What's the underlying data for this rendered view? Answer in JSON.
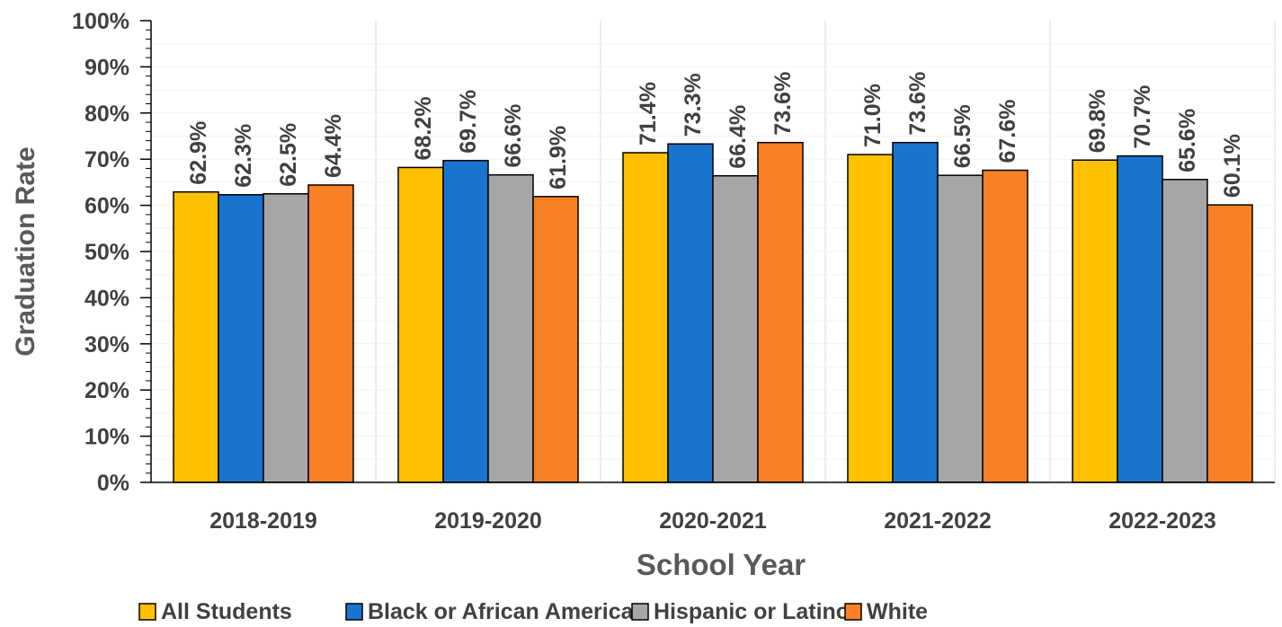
{
  "chart_data": {
    "type": "bar",
    "title": "",
    "xlabel": "School Year",
    "ylabel": "Graduation Rate",
    "ylim": [
      0,
      100
    ],
    "y_tick_step": 10,
    "y_tick_format": "percent",
    "grid": "vertical",
    "legend_position": "bottom",
    "categories": [
      "2018-2019",
      "2019-2020",
      "2020-2021",
      "2021-2022",
      "2022-2023"
    ],
    "series": [
      {
        "name": "All Students",
        "color": "#FFC000",
        "values": [
          62.9,
          68.2,
          71.4,
          71.0,
          69.8
        ],
        "labels": [
          "62.9%",
          "68.2%",
          "71.4%",
          "71.0%",
          "69.8%"
        ]
      },
      {
        "name": "Black or African American",
        "color": "#1874CD",
        "values": [
          62.3,
          69.7,
          73.3,
          73.6,
          70.7
        ],
        "labels": [
          "62.3%",
          "69.7%",
          "73.3%",
          "73.6%",
          "70.7%"
        ]
      },
      {
        "name": "Hispanic or Latino",
        "color": "#A6A6A6",
        "values": [
          62.5,
          66.6,
          66.4,
          66.5,
          65.6
        ],
        "labels": [
          "62.5%",
          "66.6%",
          "66.4%",
          "66.5%",
          "65.6%"
        ]
      },
      {
        "name": "White",
        "color": "#F98025",
        "values": [
          64.4,
          61.9,
          73.6,
          67.6,
          60.1
        ],
        "labels": [
          "64.4%",
          "61.9%",
          "73.6%",
          "67.6%",
          "60.1%"
        ]
      }
    ],
    "y_tick_labels": [
      "0%",
      "10%",
      "20%",
      "30%",
      "40%",
      "50%",
      "60%",
      "70%",
      "80%",
      "90%",
      "100%"
    ]
  }
}
